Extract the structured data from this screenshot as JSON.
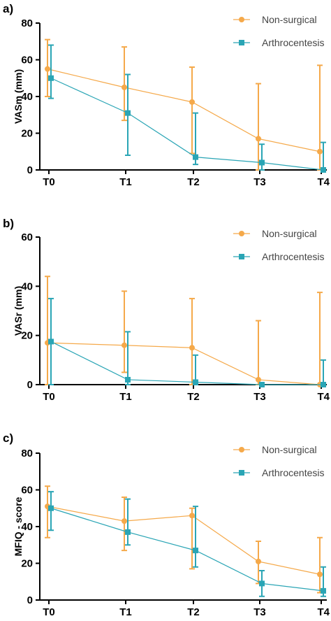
{
  "colors": {
    "non_surgical": "#F5A94A",
    "arthrocentesis": "#2AA5B5",
    "axis": "#000000"
  },
  "chart_data": [
    {
      "type": "line",
      "panel": "a)",
      "ylabel": "VASm (mm)",
      "ylim": [
        0,
        80
      ],
      "yticks": [
        0,
        20,
        40,
        60,
        80
      ],
      "categories": [
        "T0",
        "T1",
        "T2",
        "T3",
        "T4"
      ],
      "legend": "top-right",
      "series": [
        {
          "name": "Non-surgical",
          "marker": "circle",
          "values": [
            55,
            45,
            37,
            17,
            10
          ],
          "err_low": [
            40,
            27,
            9,
            0,
            0
          ],
          "err_high": [
            71,
            67,
            56,
            47,
            57
          ]
        },
        {
          "name": "Arthrocentesis",
          "marker": "square",
          "values": [
            50,
            31,
            7,
            4,
            0
          ],
          "err_low": [
            39,
            8,
            3,
            0,
            0
          ],
          "err_high": [
            68,
            52,
            31,
            14,
            15
          ]
        }
      ]
    },
    {
      "type": "line",
      "panel": "b)",
      "ylabel": "VASr (mm)",
      "ylim": [
        0,
        60
      ],
      "yticks": [
        0,
        20,
        40,
        60
      ],
      "categories": [
        "T0",
        "T1",
        "T2",
        "T3",
        "T4"
      ],
      "legend": "top-right",
      "series": [
        {
          "name": "Non-surgical",
          "marker": "circle",
          "values": [
            17,
            16,
            15,
            2,
            0
          ],
          "err_low": [
            0,
            5,
            0,
            0,
            0
          ],
          "err_high": [
            44,
            38,
            35,
            26,
            37.5
          ]
        },
        {
          "name": "Arthrocentesis",
          "marker": "square",
          "values": [
            17.5,
            2,
            1,
            0,
            0
          ],
          "err_low": [
            0,
            0,
            0,
            0,
            0
          ],
          "err_high": [
            35,
            21.5,
            12,
            0,
            10
          ]
        }
      ]
    },
    {
      "type": "line",
      "panel": "c)",
      "ylabel": "MFIQ - score",
      "ylim": [
        0,
        80
      ],
      "yticks": [
        0,
        20,
        40,
        60,
        80
      ],
      "categories": [
        "T0",
        "T1",
        "T2",
        "T3",
        "T4"
      ],
      "legend": "top-right",
      "series": [
        {
          "name": "Non-surgical",
          "marker": "circle",
          "values": [
            51,
            43,
            46,
            21,
            14
          ],
          "err_low": [
            34,
            27,
            17,
            9,
            4
          ],
          "err_high": [
            62,
            56,
            50,
            32,
            34
          ]
        },
        {
          "name": "Arthrocentesis",
          "marker": "square",
          "values": [
            50,
            37,
            27,
            9,
            5
          ],
          "err_low": [
            38,
            30,
            18,
            2,
            2
          ],
          "err_high": [
            59,
            55,
            51,
            16,
            18
          ]
        }
      ]
    }
  ]
}
